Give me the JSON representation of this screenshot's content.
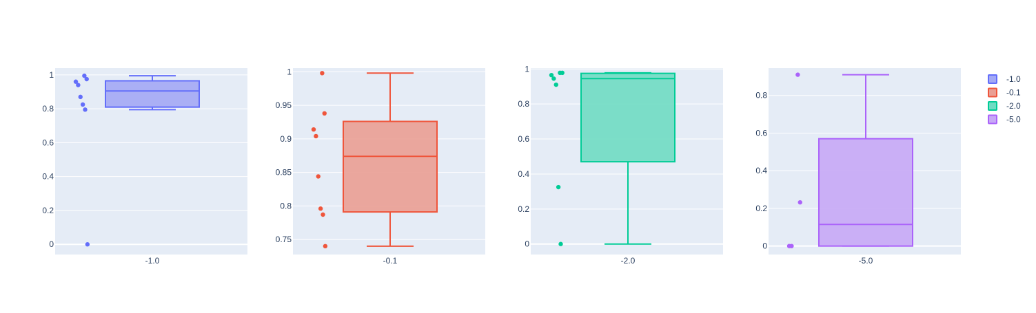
{
  "chart_data": [
    {
      "type": "box",
      "category": "-1.0",
      "ylim": [
        -0.06,
        1.04
      ],
      "yticks": [
        0,
        0.2,
        0.4,
        0.6,
        0.8,
        1
      ],
      "ytick_labels": [
        "0",
        "0.2",
        "0.4",
        "0.6",
        "0.8",
        "1"
      ],
      "box": {
        "min": 0.795,
        "q1": 0.81,
        "median": 0.905,
        "q3": 0.965,
        "max": 0.995
      },
      "points": [
        0.995,
        0.975,
        0.96,
        0.94,
        0.87,
        0.825,
        0.795,
        0.0
      ],
      "color": "#636efa",
      "fill": "#a3a9f5"
    },
    {
      "type": "box",
      "category": "-0.1",
      "ylim": [
        0.7275,
        1.0055
      ],
      "yticks": [
        0.75,
        0.8,
        0.85,
        0.9,
        0.95,
        1
      ],
      "ytick_labels": [
        "0.75",
        "0.8",
        "0.85",
        "0.9",
        "0.95",
        "1"
      ],
      "box": {
        "min": 0.74,
        "q1": 0.791,
        "median": 0.874,
        "q3": 0.926,
        "max": 0.998
      },
      "points": [
        0.998,
        0.938,
        0.914,
        0.904,
        0.844,
        0.796,
        0.787,
        0.74
      ],
      "color": "#ef553b",
      "fill": "#ea9f94"
    },
    {
      "type": "box",
      "category": "-2.0",
      "ylim": [
        -0.06,
        1.005
      ],
      "yticks": [
        0,
        0.2,
        0.4,
        0.6,
        0.8,
        1
      ],
      "ytick_labels": [
        "0",
        "0.2",
        "0.4",
        "0.6",
        "0.8",
        "1"
      ],
      "box": {
        "min": 0.0,
        "q1": 0.47,
        "median": 0.945,
        "q3": 0.975,
        "max": 0.978
      },
      "points": [
        0.978,
        0.978,
        0.965,
        0.945,
        0.91,
        0.325,
        0.0
      ],
      "color": "#00cc96",
      "fill": "#6fdcc3"
    },
    {
      "type": "box",
      "category": "-5.0",
      "ylim": [
        -0.045,
        0.945
      ],
      "yticks": [
        0,
        0.2,
        0.4,
        0.6,
        0.8
      ],
      "ytick_labels": [
        "0",
        "0.2",
        "0.4",
        "0.6",
        "0.8"
      ],
      "box": {
        "min": 0.0,
        "q1": 0.0,
        "median": 0.115,
        "q3": 0.57,
        "max": 0.91
      },
      "points": [
        0.91,
        0.232,
        0.0,
        0.0
      ],
      "color": "#ab63fa",
      "fill": "#c7a9f6"
    }
  ],
  "legend": {
    "placement": "top-right",
    "items": [
      {
        "label": "-1.0",
        "color": "#636efa",
        "fill": "#a3a9f5"
      },
      {
        "label": "-0.1",
        "color": "#ef553b",
        "fill": "#ea9f94"
      },
      {
        "label": "-2.0",
        "color": "#00cc96",
        "fill": "#6fdcc3"
      },
      {
        "label": "-5.0",
        "color": "#ab63fa",
        "fill": "#c7a9f6"
      }
    ]
  }
}
